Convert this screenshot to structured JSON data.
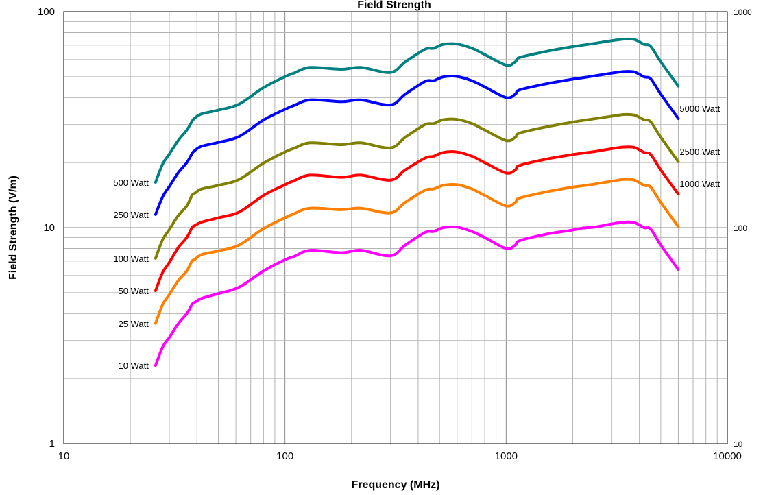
{
  "chart_data": {
    "type": "line",
    "title": "Field Strength",
    "xlabel": "Frequency (MHz)",
    "ylabel": "Field Strength (V/m)",
    "x_scale": "log",
    "y_scale": "log",
    "xlim": [
      10,
      10000
    ],
    "ylim": [
      1,
      100
    ],
    "y2lim": [
      10,
      1000
    ],
    "grid": true,
    "x_tick_labels": [
      "10",
      "100",
      "1000",
      "10000"
    ],
    "y_tick_labels": [
      "1",
      "10",
      "100"
    ],
    "y2_tick_labels": [
      "10",
      "100",
      "1000"
    ],
    "x": [
      26,
      28,
      30,
      33,
      36,
      38,
      39,
      42,
      50,
      62,
      80,
      100,
      110,
      130,
      180,
      220,
      300,
      350,
      430,
      470,
      520,
      600,
      700,
      800,
      1000,
      1100,
      1150,
      1500,
      2000,
      2200,
      2500,
      3000,
      3400,
      3800,
      4200,
      4500,
      5000,
      6000
    ],
    "series": [
      {
        "name": "10 Watt",
        "color": "#ff00ff",
        "values": [
          2.3,
          2.8,
          3.1,
          3.6,
          4.0,
          4.4,
          4.5,
          4.7,
          4.95,
          5.3,
          6.3,
          7.1,
          7.35,
          7.85,
          7.65,
          7.85,
          7.4,
          8.3,
          9.5,
          9.6,
          10.0,
          10.05,
          9.6,
          9.0,
          8.0,
          8.3,
          8.7,
          9.3,
          9.75,
          9.95,
          10.05,
          10.4,
          10.6,
          10.55,
          10.0,
          9.85,
          8.3,
          6.4
        ]
      },
      {
        "name": "25 Watt",
        "color": "#ff7f00",
        "values": [
          3.6,
          4.4,
          4.9,
          5.7,
          6.3,
          7.0,
          7.1,
          7.5,
          7.8,
          8.3,
          9.9,
          11.1,
          11.6,
          12.3,
          12.1,
          12.3,
          11.7,
          13.1,
          14.9,
          15.1,
          15.7,
          15.8,
          15.1,
          14.1,
          12.6,
          13.1,
          13.7,
          14.6,
          15.4,
          15.6,
          15.9,
          16.4,
          16.7,
          16.6,
          15.7,
          15.4,
          13.1,
          10.1
        ]
      },
      {
        "name": "50 Watt",
        "color": "#ff0000",
        "values": [
          5.1,
          6.2,
          6.9,
          8.1,
          9.0,
          10.0,
          10.2,
          10.6,
          11.1,
          11.8,
          14.1,
          15.8,
          16.5,
          17.5,
          17.1,
          17.5,
          16.6,
          18.5,
          21.0,
          21.4,
          22.3,
          22.4,
          21.4,
          20.0,
          17.9,
          18.5,
          19.4,
          20.7,
          21.8,
          22.1,
          22.5,
          23.2,
          23.6,
          23.5,
          22.3,
          21.8,
          18.5,
          14.3
        ]
      },
      {
        "name": "100 Watt",
        "color": "#808000",
        "values": [
          7.2,
          8.8,
          9.8,
          11.4,
          12.6,
          14.1,
          14.4,
          15.1,
          15.7,
          16.7,
          19.9,
          22.4,
          23.3,
          24.7,
          24.2,
          24.7,
          23.4,
          26.2,
          30.0,
          30.3,
          31.6,
          31.7,
          30.3,
          28.3,
          25.3,
          26.2,
          27.4,
          29.2,
          30.8,
          31.3,
          31.9,
          32.8,
          33.4,
          33.2,
          31.6,
          30.9,
          26.2,
          20.2
        ]
      },
      {
        "name": "250 Watt",
        "color": "#0000ff",
        "values": [
          11.5,
          13.9,
          15.5,
          18.0,
          20.0,
          22.0,
          22.7,
          23.8,
          24.8,
          26.4,
          31.5,
          35.3,
          36.8,
          39.0,
          38.3,
          39.0,
          37.0,
          41.5,
          47.5,
          47.9,
          49.9,
          50.1,
          47.9,
          44.8,
          40.0,
          41.5,
          43.4,
          46.2,
          48.7,
          49.4,
          50.4,
          51.9,
          52.8,
          52.6,
          49.9,
          48.9,
          41.5,
          32.0
        ]
      },
      {
        "name": "500 Watt",
        "color": "#008080",
        "values": [
          16.2,
          19.7,
          21.9,
          25.4,
          28.3,
          31.0,
          32.1,
          33.6,
          35.0,
          37.3,
          44.5,
          50.0,
          52.0,
          55.2,
          54.1,
          55.2,
          52.3,
          58.6,
          67.0,
          67.7,
          70.6,
          70.8,
          67.7,
          63.3,
          56.5,
          58.6,
          61.3,
          65.3,
          68.9,
          69.9,
          71.3,
          73.4,
          74.6,
          74.3,
          70.6,
          69.1,
          58.6,
          45.2
        ]
      }
    ],
    "left_labels": [
      "500 Watt",
      "250 Watt",
      "100 Watt",
      "50 Watt",
      "25 Watt",
      "10 Watt"
    ],
    "right_labels": [
      "5000 Watt",
      "2500 Watt",
      "1000 Watt"
    ]
  }
}
